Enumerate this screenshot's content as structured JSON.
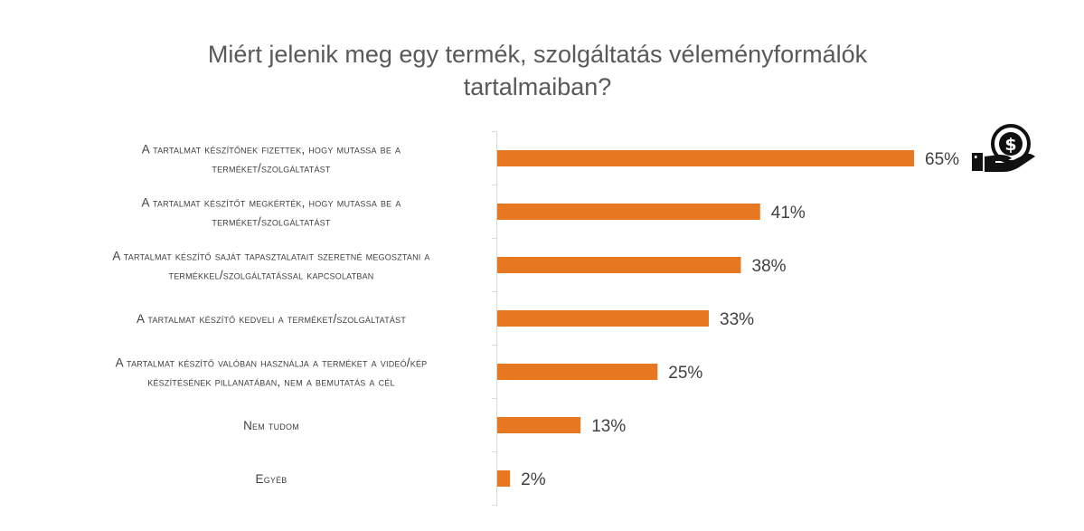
{
  "chart_data": {
    "type": "bar",
    "orientation": "horizontal",
    "title_lines": [
      "Miért jelenik meg egy termék, szolgáltatás véleményformálók",
      "tartalmaiban?"
    ],
    "categories": [
      [
        "A tartalmat készítőnek fizettek, hogy mutassa be a",
        "terméket/szolgáltatást"
      ],
      [
        "A tartalmat készítőt megkérték, hogy mutassa be a",
        "terméket/szolgáltatást"
      ],
      [
        "A tartalmat készítő saját tapasztalatait szeretné megosztani a",
        "termékkel/szolgáltatással kapcsolatban"
      ],
      [
        "A tartalmat készítő kedveli a terméket/szolgáltatást"
      ],
      [
        "A tartalmat készítő valóban használja a terméket a videó/kép",
        "készítésének pillanatában, nem a bemutatás a cél"
      ],
      [
        "Nem tudom"
      ],
      [
        "Egyéb"
      ]
    ],
    "values": [
      65,
      41,
      38,
      33,
      25,
      13,
      2
    ],
    "value_labels": [
      "65%",
      "41%",
      "38%",
      "33%",
      "25%",
      "13%",
      "2%"
    ],
    "xlim": [
      0,
      100
    ],
    "unit": "%",
    "bar_color": "#E87722",
    "grid": false,
    "legend": "none"
  },
  "decoration": {
    "icon": "hand-holding-money-icon"
  }
}
